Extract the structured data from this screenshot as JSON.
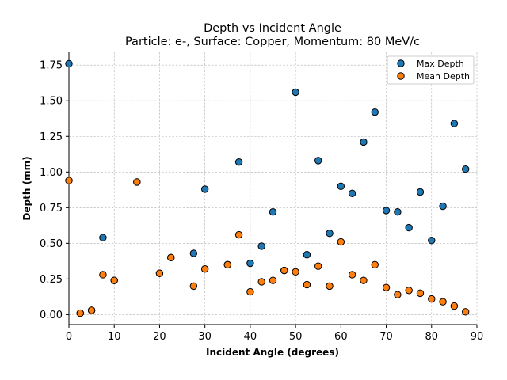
{
  "chart_data": {
    "type": "scatter",
    "title_line1": "Depth vs Incident Angle",
    "title_line2": "Particle: e-, Surface: Copper, Momentum: 80 MeV/c",
    "xlabel": "Incident Angle (degrees)",
    "ylabel": "Depth (mm)",
    "xlim": [
      0,
      90
    ],
    "ylim": [
      -0.07,
      1.84
    ],
    "xticks": [
      0,
      10,
      20,
      30,
      40,
      50,
      60,
      70,
      80,
      90
    ],
    "xtick_labels": [
      "0",
      "10",
      "20",
      "30",
      "40",
      "50",
      "60",
      "70",
      "80",
      "90"
    ],
    "yticks": [
      0.0,
      0.25,
      0.5,
      0.75,
      1.0,
      1.25,
      1.5,
      1.75
    ],
    "ytick_labels": [
      "0.00",
      "0.25",
      "0.50",
      "0.75",
      "1.00",
      "1.25",
      "1.50",
      "1.75"
    ],
    "grid": true,
    "legend_position": "top-right",
    "series": [
      {
        "name": "Max Depth",
        "color": "#1f77b4",
        "points": [
          [
            0,
            1.76
          ],
          [
            2.5,
            0.01
          ],
          [
            5,
            0.03
          ],
          [
            7.5,
            0.54
          ],
          [
            10,
            0.24
          ],
          [
            15,
            0.93
          ],
          [
            20,
            0.29
          ],
          [
            22.5,
            0.4
          ],
          [
            27.5,
            0.43
          ],
          [
            30,
            0.88
          ],
          [
            35,
            0.35
          ],
          [
            37.5,
            1.07
          ],
          [
            40,
            0.36
          ],
          [
            42.5,
            0.48
          ],
          [
            45,
            0.72
          ],
          [
            47.5,
            0.31
          ],
          [
            50,
            1.56
          ],
          [
            52.5,
            0.42
          ],
          [
            55,
            1.08
          ],
          [
            57.5,
            0.57
          ],
          [
            60,
            0.9
          ],
          [
            62.5,
            0.85
          ],
          [
            65,
            1.21
          ],
          [
            67.5,
            1.42
          ],
          [
            70,
            0.73
          ],
          [
            72.5,
            0.72
          ],
          [
            75,
            0.61
          ],
          [
            77.5,
            0.86
          ],
          [
            80,
            0.52
          ],
          [
            82.5,
            0.76
          ],
          [
            85,
            1.34
          ],
          [
            87.5,
            1.02
          ]
        ]
      },
      {
        "name": "Mean Depth",
        "color": "#ff7f0e",
        "points": [
          [
            0,
            0.94
          ],
          [
            2.5,
            0.01
          ],
          [
            5,
            0.03
          ],
          [
            7.5,
            0.28
          ],
          [
            10,
            0.24
          ],
          [
            15,
            0.93
          ],
          [
            20,
            0.29
          ],
          [
            22.5,
            0.4
          ],
          [
            27.5,
            0.2
          ],
          [
            30,
            0.32
          ],
          [
            35,
            0.35
          ],
          [
            37.5,
            0.56
          ],
          [
            40,
            0.16
          ],
          [
            42.5,
            0.23
          ],
          [
            45,
            0.24
          ],
          [
            47.5,
            0.31
          ],
          [
            50,
            0.3
          ],
          [
            52.5,
            0.21
          ],
          [
            55,
            0.34
          ],
          [
            57.5,
            0.2
          ],
          [
            60,
            0.51
          ],
          [
            62.5,
            0.28
          ],
          [
            65,
            0.24
          ],
          [
            67.5,
            0.35
          ],
          [
            70,
            0.19
          ],
          [
            72.5,
            0.14
          ],
          [
            75,
            0.17
          ],
          [
            77.5,
            0.15
          ],
          [
            80,
            0.11
          ],
          [
            82.5,
            0.09
          ],
          [
            85,
            0.06
          ],
          [
            87.5,
            0.02
          ]
        ]
      }
    ]
  }
}
